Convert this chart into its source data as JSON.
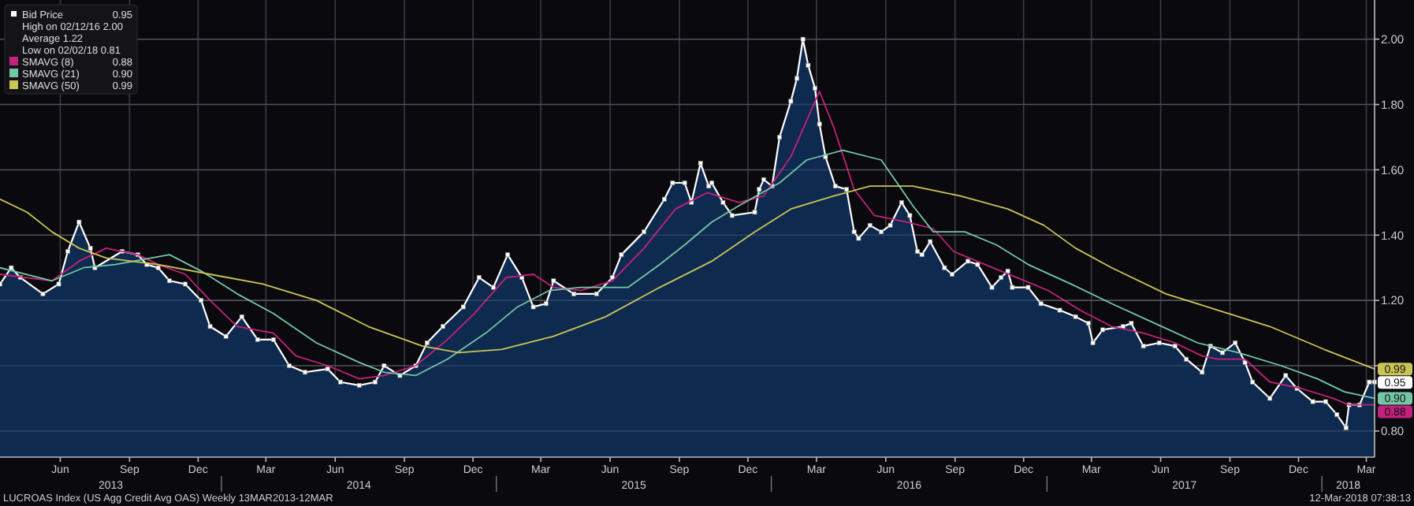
{
  "chart_data": {
    "type": "line",
    "legend": "top left",
    "grid": true,
    "xlim": [
      "2013-03-13",
      "2018-03-12"
    ],
    "ylim": [
      0.72,
      2.12
    ],
    "xticks": [
      {
        "value": "2013-06-01",
        "label": "Jun"
      },
      {
        "value": "2013-09-01",
        "label": "Sep"
      },
      {
        "value": "2013-12-01",
        "label": "Dec"
      },
      {
        "value": "2014-03-01",
        "label": "Mar"
      },
      {
        "value": "2014-06-01",
        "label": "Jun"
      },
      {
        "value": "2014-09-01",
        "label": "Sep"
      },
      {
        "value": "2014-12-01",
        "label": "Dec"
      },
      {
        "value": "2015-03-01",
        "label": "Mar"
      },
      {
        "value": "2015-06-01",
        "label": "Jun"
      },
      {
        "value": "2015-09-01",
        "label": "Sep"
      },
      {
        "value": "2015-12-01",
        "label": "Dec"
      },
      {
        "value": "2016-03-01",
        "label": "Mar"
      },
      {
        "value": "2016-06-01",
        "label": "Jun"
      },
      {
        "value": "2016-09-01",
        "label": "Sep"
      },
      {
        "value": "2016-12-01",
        "label": "Dec"
      },
      {
        "value": "2017-03-01",
        "label": "Mar"
      },
      {
        "value": "2017-06-01",
        "label": "Jun"
      },
      {
        "value": "2017-09-01",
        "label": "Sep"
      },
      {
        "value": "2017-12-01",
        "label": "Dec"
      },
      {
        "value": "2018-03-01",
        "label": "Mar"
      }
    ],
    "yticks": [
      {
        "value": 0.8,
        "label": "0.80"
      },
      {
        "value": 1.0,
        "label": null
      },
      {
        "value": 1.2,
        "label": "1.20"
      },
      {
        "value": 1.4,
        "label": "1.40"
      },
      {
        "value": 1.6,
        "label": "1.60"
      },
      {
        "value": 1.8,
        "label": "1.80"
      },
      {
        "value": 2.0,
        "label": "2.00"
      }
    ],
    "series": [
      {
        "name": "Bid Price",
        "type": "area",
        "color": "#ffffff",
        "marker": "square",
        "x": [
          "2013-03-13",
          "2013-03-28",
          "2013-04-09",
          "2013-05-09",
          "2013-05-30",
          "2013-06-11",
          "2013-06-26",
          "2013-07-11",
          "2013-07-17",
          "2013-08-22",
          "2013-09-12",
          "2013-09-24",
          "2013-10-09",
          "2013-10-24",
          "2013-11-14",
          "2013-12-05",
          "2013-12-17",
          "2014-01-07",
          "2014-01-28",
          "2014-02-18",
          "2014-03-11",
          "2014-04-01",
          "2014-04-22",
          "2014-05-22",
          "2014-06-08",
          "2014-07-03",
          "2014-07-24",
          "2014-08-05",
          "2014-08-26",
          "2014-09-16",
          "2014-10-01",
          "2014-10-22",
          "2014-11-18",
          "2014-12-09",
          "2014-12-28",
          "2015-01-16",
          "2015-02-04",
          "2015-02-19",
          "2015-03-08",
          "2015-03-18",
          "2015-04-14",
          "2015-05-14",
          "2015-06-04",
          "2015-06-16",
          "2015-07-16",
          "2015-08-12",
          "2015-08-23",
          "2015-09-08",
          "2015-09-17",
          "2015-09-29",
          "2015-10-10",
          "2015-10-14",
          "2015-10-29",
          "2015-11-10",
          "2015-12-10",
          "2015-12-16",
          "2015-12-22",
          "2016-01-02",
          "2016-01-12",
          "2016-01-27",
          "2016-02-04",
          "2016-02-12",
          "2016-02-19",
          "2016-02-28",
          "2016-03-05",
          "2016-03-13",
          "2016-03-26",
          "2016-04-10",
          "2016-04-20",
          "2016-04-26",
          "2016-05-11",
          "2016-05-26",
          "2016-06-07",
          "2016-06-22",
          "2016-07-03",
          "2016-07-13",
          "2016-07-19",
          "2016-07-30",
          "2016-08-18",
          "2016-08-28",
          "2016-09-18",
          "2016-10-01",
          "2016-10-20",
          "2016-11-01",
          "2016-11-10",
          "2016-11-16",
          "2016-12-07",
          "2016-12-24",
          "2017-01-18",
          "2017-02-08",
          "2017-02-25",
          "2017-03-03",
          "2017-03-16",
          "2017-04-12",
          "2017-04-23",
          "2017-05-09",
          "2017-05-30",
          "2017-06-20",
          "2017-07-05",
          "2017-07-26",
          "2017-08-06",
          "2017-08-22",
          "2017-09-08",
          "2017-09-21",
          "2017-10-01",
          "2017-10-24",
          "2017-11-14",
          "2017-11-29",
          "2017-12-20",
          "2018-01-06",
          "2018-01-21",
          "2018-02-02",
          "2018-02-06",
          "2018-02-20",
          "2018-03-05",
          "2018-03-12"
        ],
        "values": [
          1.25,
          1.3,
          1.27,
          1.22,
          1.25,
          1.35,
          1.44,
          1.36,
          1.3,
          1.35,
          1.34,
          1.31,
          1.3,
          1.26,
          1.25,
          1.2,
          1.12,
          1.09,
          1.15,
          1.08,
          1.08,
          1.0,
          0.98,
          0.99,
          0.95,
          0.94,
          0.95,
          1.0,
          0.97,
          1.0,
          1.07,
          1.12,
          1.18,
          1.27,
          1.24,
          1.34,
          1.27,
          1.18,
          1.19,
          1.26,
          1.22,
          1.22,
          1.27,
          1.34,
          1.41,
          1.51,
          1.56,
          1.56,
          1.5,
          1.62,
          1.55,
          1.56,
          1.5,
          1.46,
          1.47,
          1.54,
          1.57,
          1.55,
          1.7,
          1.81,
          1.88,
          2.0,
          1.92,
          1.85,
          1.74,
          1.64,
          1.55,
          1.54,
          1.41,
          1.39,
          1.43,
          1.41,
          1.43,
          1.5,
          1.46,
          1.35,
          1.34,
          1.38,
          1.3,
          1.28,
          1.32,
          1.31,
          1.24,
          1.27,
          1.29,
          1.24,
          1.24,
          1.19,
          1.17,
          1.15,
          1.13,
          1.07,
          1.11,
          1.12,
          1.13,
          1.06,
          1.07,
          1.06,
          1.02,
          0.98,
          1.06,
          1.04,
          1.07,
          1.01,
          0.95,
          0.9,
          0.97,
          0.93,
          0.89,
          0.89,
          0.85,
          0.81,
          0.88,
          0.88,
          0.95,
          0.95
        ]
      },
      {
        "name": "SMAVG (8)",
        "type": "line",
        "color": "#c4217c",
        "x": [
          "2013-03-13",
          "2013-05-21",
          "2013-06-26",
          "2013-08-01",
          "2013-09-12",
          "2013-10-09",
          "2013-11-14",
          "2013-12-17",
          "2014-01-22",
          "2014-03-11",
          "2014-04-10",
          "2014-05-22",
          "2014-07-03",
          "2014-08-05",
          "2014-09-16",
          "2014-10-28",
          "2014-12-03",
          "2015-01-14",
          "2015-02-19",
          "2015-03-18",
          "2015-04-23",
          "2015-06-04",
          "2015-07-16",
          "2015-08-27",
          "2015-10-08",
          "2015-11-19",
          "2015-12-22",
          "2016-01-27",
          "2016-03-05",
          "2016-03-24",
          "2016-04-20",
          "2016-05-17",
          "2016-06-28",
          "2016-08-03",
          "2016-08-30",
          "2016-10-11",
          "2016-11-22",
          "2017-01-03",
          "2017-02-14",
          "2017-03-28",
          "2017-05-09",
          "2017-06-20",
          "2017-07-26",
          "2017-08-16",
          "2017-09-21",
          "2017-10-24",
          "2017-12-05",
          "2018-01-16",
          "2018-02-06",
          "2018-03-12"
        ],
        "values": [
          1.28,
          1.26,
          1.32,
          1.36,
          1.34,
          1.31,
          1.28,
          1.2,
          1.12,
          1.1,
          1.03,
          1.0,
          0.96,
          0.97,
          1.0,
          1.08,
          1.16,
          1.27,
          1.28,
          1.24,
          1.23,
          1.26,
          1.36,
          1.48,
          1.53,
          1.5,
          1.52,
          1.64,
          1.84,
          1.73,
          1.54,
          1.46,
          1.44,
          1.42,
          1.35,
          1.31,
          1.27,
          1.23,
          1.17,
          1.12,
          1.1,
          1.07,
          1.03,
          1.02,
          1.02,
          0.95,
          0.93,
          0.9,
          0.88,
          0.88
        ]
      },
      {
        "name": "SMAVG (21)",
        "type": "line",
        "color": "#74c6a4",
        "x": [
          "2013-03-13",
          "2013-05-21",
          "2013-07-02",
          "2013-08-13",
          "2013-10-24",
          "2013-12-05",
          "2014-01-22",
          "2014-03-11",
          "2014-05-07",
          "2014-07-03",
          "2014-08-05",
          "2014-09-16",
          "2014-10-28",
          "2014-12-18",
          "2015-01-29",
          "2015-03-12",
          "2015-04-23",
          "2015-06-25",
          "2015-08-06",
          "2015-09-08",
          "2015-10-14",
          "2015-11-19",
          "2016-01-12",
          "2016-02-17",
          "2016-04-05",
          "2016-05-26",
          "2016-07-07",
          "2016-08-03",
          "2016-09-14",
          "2016-10-26",
          "2016-12-07",
          "2017-02-02",
          "2017-03-28",
          "2017-05-24",
          "2017-07-20",
          "2017-09-12",
          "2017-11-08",
          "2017-12-26",
          "2018-01-31",
          "2018-03-12"
        ],
        "values": [
          1.3,
          1.26,
          1.3,
          1.31,
          1.34,
          1.29,
          1.22,
          1.16,
          1.07,
          1.01,
          0.98,
          0.97,
          1.02,
          1.1,
          1.18,
          1.23,
          1.24,
          1.24,
          1.31,
          1.37,
          1.44,
          1.49,
          1.56,
          1.63,
          1.66,
          1.63,
          1.49,
          1.41,
          1.41,
          1.37,
          1.31,
          1.25,
          1.19,
          1.13,
          1.07,
          1.04,
          1.0,
          0.96,
          0.92,
          0.9
        ]
      },
      {
        "name": "SMAVG (50)",
        "type": "line",
        "color": "#c9c456",
        "x": [
          "2013-03-13",
          "2013-04-18",
          "2013-05-21",
          "2013-06-26",
          "2013-08-01",
          "2013-10-09",
          "2013-12-17",
          "2014-02-25",
          "2014-05-07",
          "2014-07-15",
          "2014-09-25",
          "2014-11-12",
          "2015-01-08",
          "2015-03-18",
          "2015-05-26",
          "2015-08-06",
          "2015-10-14",
          "2015-12-10",
          "2016-01-27",
          "2016-03-24",
          "2016-05-11",
          "2016-07-07",
          "2016-09-08",
          "2016-11-10",
          "2016-12-28",
          "2017-02-08",
          "2017-03-28",
          "2017-06-08",
          "2017-08-16",
          "2017-10-24",
          "2018-01-04",
          "2018-03-12"
        ],
        "values": [
          1.51,
          1.47,
          1.41,
          1.36,
          1.33,
          1.31,
          1.28,
          1.25,
          1.2,
          1.12,
          1.06,
          1.04,
          1.05,
          1.09,
          1.15,
          1.24,
          1.32,
          1.41,
          1.48,
          1.52,
          1.55,
          1.55,
          1.52,
          1.48,
          1.43,
          1.36,
          1.3,
          1.22,
          1.17,
          1.12,
          1.05,
          0.99
        ]
      }
    ],
    "annotations": [
      {
        "text": "0.95",
        "x": "2018-03-12",
        "y": 0.95
      },
      "High on 02/12/16 2.00",
      "Average 1.22",
      "Low on 02/02/18 0.81",
      {
        "text": "0.88",
        "x": "2018-03-12",
        "y": 0.88
      },
      {
        "text": "0.90",
        "x": "2018-03-12",
        "y": 0.9
      },
      {
        "text": "0.99",
        "x": "2018-03-12",
        "y": 0.99
      },
      "LUCROAS Index (US Agg Credit Avg OAS) Weekly 13MAR2013-12MAR",
      "12-Mar-2018 07:38:13",
      "2013",
      "2014",
      "2015",
      "2016",
      "2017",
      "2018"
    ]
  }
}
